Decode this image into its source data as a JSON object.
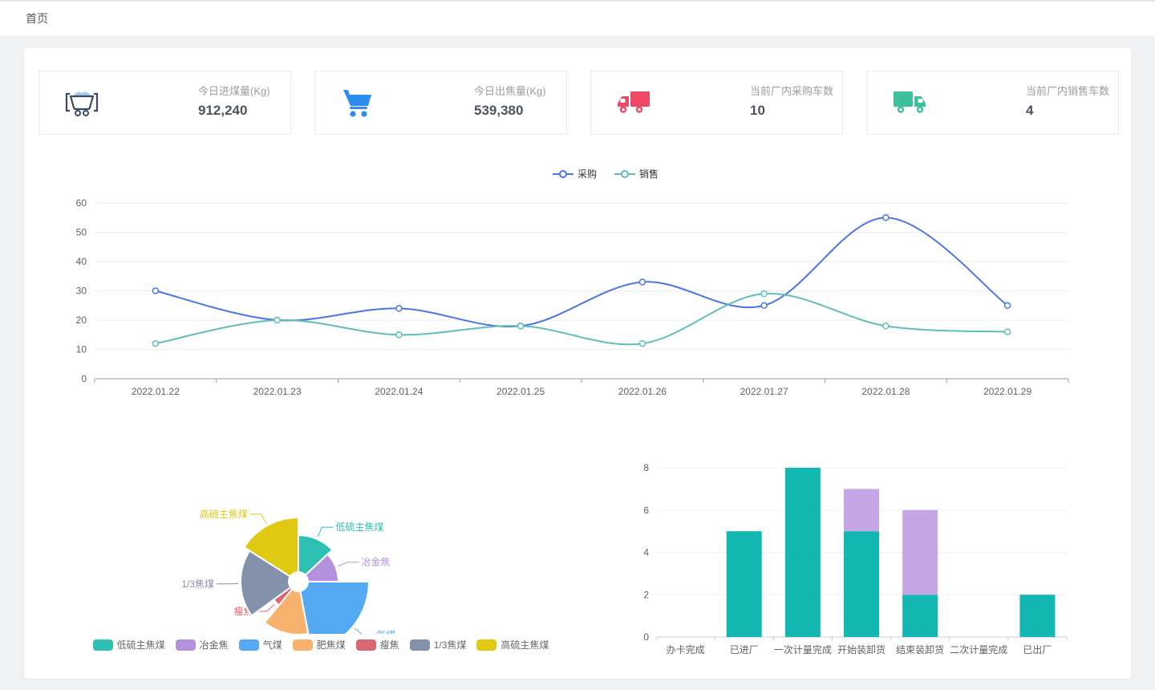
{
  "page": {
    "breadcrumb": "首页"
  },
  "cards": {
    "items": [
      {
        "icon": "mine-cart-icon",
        "icon_color": "#3a4a63",
        "accent": "#a9cbe8",
        "label": "今日进煤量(Kg)",
        "value": "912,240"
      },
      {
        "icon": "cart-icon",
        "icon_color": "#2e8bf0",
        "accent": "#2e8bf0",
        "label": "今日出焦量(Kg)",
        "value": "539,380"
      },
      {
        "icon": "truck-in-icon",
        "icon_color": "#ee4964",
        "accent": "#ee4964",
        "label": "当前厂内采购车数",
        "value": "10"
      },
      {
        "icon": "truck-out-icon",
        "icon_color": "#3cc09c",
        "accent": "#3cc09c",
        "label": "当前厂内销售车数",
        "value": "4"
      }
    ]
  },
  "chart_data": [
    {
      "type": "line",
      "x": [
        "2022.01.22",
        "2022.01.23",
        "2022.01.24",
        "2022.01.25",
        "2022.01.26",
        "2022.01.27",
        "2022.01.28",
        "2022.01.29"
      ],
      "series": [
        {
          "name": "采购",
          "color": "#4b74e8",
          "values": [
            30,
            20,
            24,
            18,
            33,
            25,
            55,
            25
          ]
        },
        {
          "name": "销售",
          "color": "#5fbfb8",
          "values": [
            12,
            20,
            15,
            18,
            12,
            29,
            18,
            16
          ]
        }
      ],
      "ylim": [
        0,
        60
      ],
      "ytick": 10,
      "grid": true,
      "legend_position": "top",
      "smooth": true,
      "marker": "empty-circle"
    },
    {
      "type": "pie",
      "rose": true,
      "inner_radius": 12,
      "slices": [
        {
          "name": "低硫主焦煤",
          "value": 13,
          "radius": 58,
          "color": "#2ec0b0"
        },
        {
          "name": "冶金焦",
          "value": 12,
          "radius": 50,
          "color": "#b591dd"
        },
        {
          "name": "气煤",
          "value": 22,
          "radius": 88,
          "color": "#55a9f2"
        },
        {
          "name": "肥焦煤",
          "value": 14,
          "radius": 66,
          "color": "#f9b16e"
        },
        {
          "name": "瘦焦",
          "value": 4,
          "radius": 38,
          "color": "#dc6572"
        },
        {
          "name": "1/3焦煤",
          "value": 19,
          "radius": 72,
          "color": "#8391ab"
        },
        {
          "name": "高硫主焦煤",
          "value": 16,
          "radius": 80,
          "color": "#dfc913"
        }
      ],
      "legend_position": "bottom"
    },
    {
      "type": "bar",
      "stacked": true,
      "categories": [
        "办卡完成",
        "已进厂",
        "一次计量完成",
        "开始装卸货",
        "结束装卸货",
        "二次计量完成",
        "已出厂"
      ],
      "series": [
        {
          "name": "",
          "color": "#13b8b2",
          "values": [
            0,
            5,
            8,
            5,
            2,
            0,
            2
          ]
        },
        {
          "name": "",
          "color": "#c7a6e8",
          "values": [
            0,
            0,
            0,
            2,
            4,
            0,
            0
          ]
        }
      ],
      "ylim": [
        0,
        8
      ],
      "ytick": 2,
      "grid": true
    }
  ]
}
